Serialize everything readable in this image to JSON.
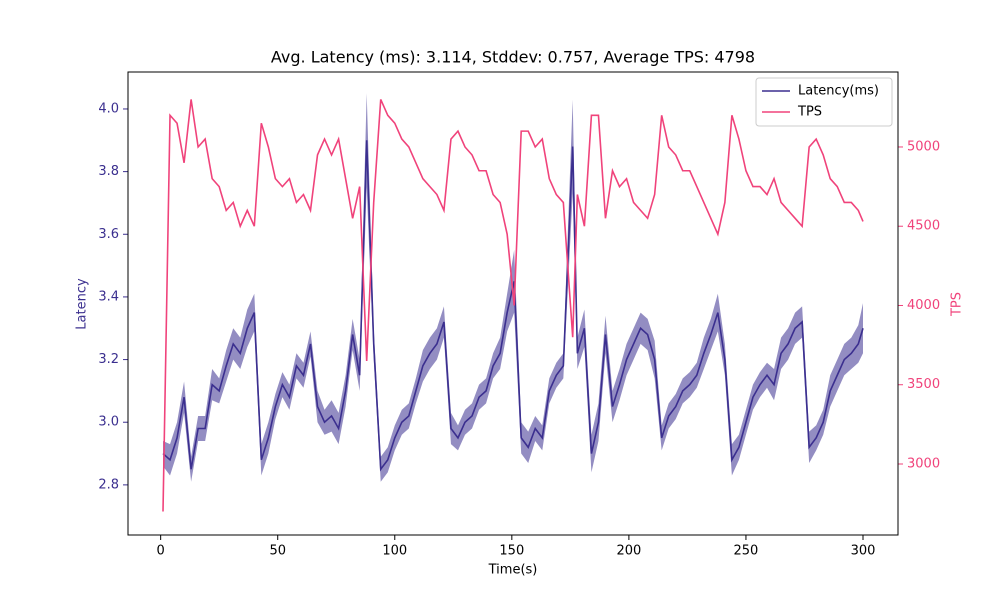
{
  "chart_data": {
    "type": "line",
    "title": "Avg. Latency (ms): 3.114, Stddev: 0.757, Average TPS: 4798",
    "xlabel": "Time(s)",
    "ylabel": "Latency",
    "y2label": "TPS",
    "x": [
      1,
      4,
      7,
      10,
      13,
      16,
      19,
      22,
      25,
      28,
      31,
      34,
      37,
      40,
      43,
      46,
      49,
      52,
      55,
      58,
      61,
      64,
      67,
      70,
      73,
      76,
      79,
      82,
      85,
      88,
      91,
      94,
      97,
      100,
      103,
      106,
      109,
      112,
      115,
      118,
      121,
      124,
      127,
      130,
      133,
      136,
      139,
      142,
      145,
      148,
      151,
      154,
      157,
      160,
      163,
      166,
      169,
      172,
      176,
      178,
      181,
      184,
      187,
      190,
      193,
      196,
      199,
      202,
      205,
      208,
      211,
      214,
      217,
      220,
      223,
      226,
      229,
      232,
      235,
      238,
      241,
      244,
      247,
      250,
      253,
      256,
      259,
      262,
      265,
      268,
      271,
      274,
      277,
      280,
      283,
      286,
      289,
      292,
      295,
      298,
      300
    ],
    "series": [
      {
        "name": "Latency(ms)",
        "color": "#3b2f8f",
        "values": [
          2.9,
          2.88,
          2.95,
          3.08,
          2.85,
          2.98,
          2.98,
          3.12,
          3.1,
          3.18,
          3.25,
          3.22,
          3.3,
          3.35,
          2.88,
          2.95,
          3.05,
          3.12,
          3.08,
          3.18,
          3.15,
          3.25,
          3.05,
          3.0,
          3.02,
          2.98,
          3.1,
          3.28,
          3.15,
          3.9,
          3.25,
          2.85,
          2.88,
          2.95,
          3.0,
          3.02,
          3.1,
          3.18,
          3.22,
          3.25,
          3.32,
          2.98,
          2.95,
          3.0,
          3.02,
          3.08,
          3.1,
          3.18,
          3.22,
          3.35,
          3.45,
          2.95,
          2.92,
          2.98,
          2.95,
          3.1,
          3.15,
          3.18,
          3.88,
          3.22,
          3.3,
          2.9,
          3.0,
          3.28,
          3.05,
          3.12,
          3.2,
          3.25,
          3.3,
          3.28,
          3.2,
          2.95,
          3.02,
          3.05,
          3.1,
          3.12,
          3.15,
          3.22,
          3.28,
          3.35,
          3.2,
          2.88,
          2.92,
          3.0,
          3.08,
          3.12,
          3.15,
          3.12,
          3.22,
          3.25,
          3.3,
          3.32,
          2.92,
          2.95,
          3.0,
          3.1,
          3.15,
          3.2,
          3.22,
          3.25,
          3.3
        ],
        "error": [
          0.04,
          0.05,
          0.05,
          0.05,
          0.04,
          0.04,
          0.04,
          0.05,
          0.04,
          0.05,
          0.05,
          0.05,
          0.06,
          0.06,
          0.05,
          0.05,
          0.04,
          0.04,
          0.04,
          0.04,
          0.04,
          0.04,
          0.05,
          0.04,
          0.05,
          0.05,
          0.05,
          0.05,
          0.05,
          0.15,
          0.05,
          0.04,
          0.04,
          0.04,
          0.04,
          0.04,
          0.04,
          0.05,
          0.05,
          0.05,
          0.05,
          0.05,
          0.04,
          0.04,
          0.04,
          0.04,
          0.04,
          0.04,
          0.05,
          0.06,
          0.1,
          0.05,
          0.05,
          0.04,
          0.04,
          0.04,
          0.04,
          0.04,
          0.15,
          0.05,
          0.06,
          0.06,
          0.06,
          0.06,
          0.05,
          0.05,
          0.05,
          0.05,
          0.05,
          0.05,
          0.06,
          0.04,
          0.04,
          0.04,
          0.04,
          0.04,
          0.04,
          0.05,
          0.05,
          0.06,
          0.05,
          0.05,
          0.04,
          0.04,
          0.04,
          0.04,
          0.04,
          0.05,
          0.05,
          0.05,
          0.05,
          0.05,
          0.05,
          0.04,
          0.04,
          0.05,
          0.05,
          0.05,
          0.05,
          0.06,
          0.08
        ]
      },
      {
        "name": "TPS",
        "color": "#f0437b",
        "axis": "y2",
        "values": [
          2700,
          5200,
          5150,
          4900,
          5300,
          5000,
          5050,
          4800,
          4750,
          4600,
          4650,
          4500,
          4600,
          4500,
          5150,
          5000,
          4800,
          4750,
          4800,
          4650,
          4700,
          4600,
          4950,
          5050,
          4950,
          5050,
          4800,
          4550,
          4750,
          3650,
          4650,
          5300,
          5200,
          5150,
          5050,
          5000,
          4900,
          4800,
          4750,
          4700,
          4600,
          5050,
          5100,
          5000,
          4950,
          4850,
          4850,
          4700,
          4650,
          4450,
          4000,
          5100,
          5100,
          5000,
          5050,
          4800,
          4700,
          4650,
          3800,
          4700,
          4500,
          5200,
          5200,
          4550,
          4850,
          4750,
          4800,
          4650,
          4600,
          4550,
          4700,
          5200,
          5000,
          4950,
          4850,
          4850,
          4750,
          4650,
          4550,
          4450,
          4650,
          5200,
          5050,
          4850,
          4750,
          4750,
          4700,
          4800,
          4650,
          4600,
          4550,
          4500,
          5000,
          5050,
          4950,
          4800,
          4750,
          4650,
          4650,
          4600,
          4530
        ]
      }
    ],
    "xlim": [
      -13.95,
      314.95
    ],
    "xticks": [
      0,
      50,
      100,
      150,
      200,
      250,
      300
    ],
    "ylim": [
      2.64,
      4.118
    ],
    "yticks": [
      2.8,
      {
        "value": 3,
        "label": "3.0"
      },
      3.2,
      3.4,
      3.6,
      3.8,
      {
        "value": 4,
        "label": "4.0"
      }
    ],
    "y2lim": [
      2552,
      5473
    ],
    "y2ticks": [
      3000,
      3500,
      4000,
      4500,
      5000
    ],
    "legend": "upper right"
  }
}
